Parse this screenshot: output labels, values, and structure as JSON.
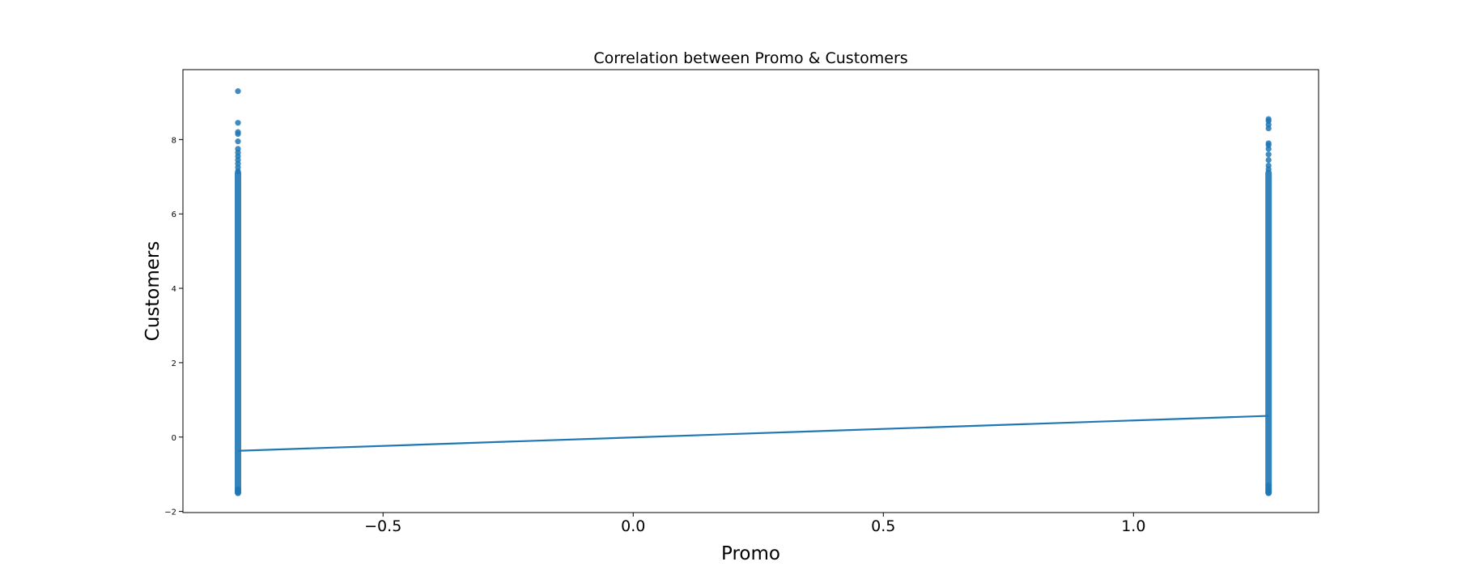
{
  "chart_data": {
    "type": "scatter",
    "title": "Correlation between Promo & Customers",
    "xlabel": "Promo",
    "ylabel": "Customers",
    "xlim": [
      -0.9,
      1.37
    ],
    "ylim": [
      -2.03,
      9.88
    ],
    "xticks": [
      -0.5,
      0.0,
      0.5,
      1.0
    ],
    "xtick_labels": [
      "−0.5",
      "0.0",
      "0.5",
      "1.0"
    ],
    "yticks": [
      -2,
      0,
      2,
      4,
      6,
      8
    ],
    "ytick_labels": [
      "−2",
      "0",
      "2",
      "4",
      "6",
      "8"
    ],
    "grid": false,
    "series": [
      {
        "x_value": -0.79,
        "y_range": [
          -1.5,
          7.1
        ],
        "points": [
          -1.5,
          -1.45,
          -1.4,
          7.15,
          7.25,
          7.35,
          7.45,
          7.55,
          7.65,
          7.75,
          7.95,
          8.15,
          8.2,
          8.45,
          9.3
        ]
      },
      {
        "x_value": 1.27,
        "y_range": [
          -1.5,
          7.1
        ],
        "points": [
          -1.5,
          -1.45,
          -1.4,
          -1.3,
          7.2,
          7.3,
          7.45,
          7.6,
          7.75,
          7.85,
          7.9,
          8.3,
          8.4,
          8.5,
          8.55
        ]
      }
    ],
    "regression_line": {
      "x": [
        -0.79,
        1.27
      ],
      "y": [
        -0.37,
        0.57
      ]
    },
    "colors": {
      "points": "#1f77b4",
      "line": "#1f77b4"
    }
  }
}
